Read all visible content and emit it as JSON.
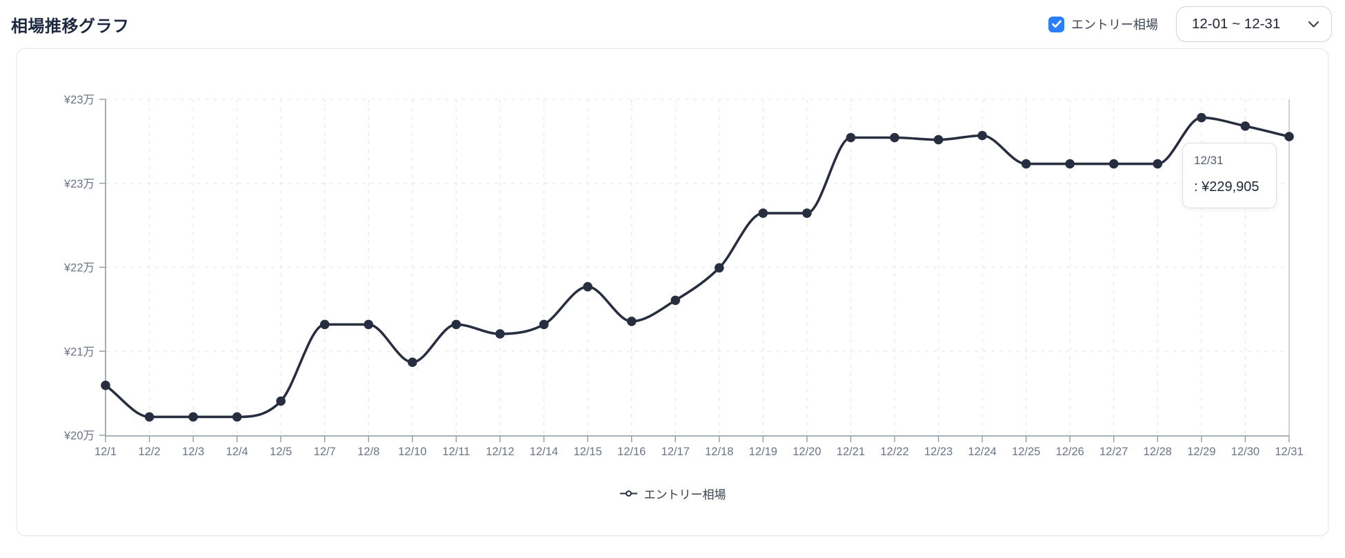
{
  "header": {
    "title": "相場推移グラフ",
    "entry_checkbox": {
      "label": "エントリー相場",
      "checked": true
    },
    "date_range_select": {
      "value": "12-01 ~ 12-31"
    }
  },
  "tooltip": {
    "date": "12/31",
    "value_text": ": ¥229,905"
  },
  "legend": {
    "label": "エントリー相場"
  },
  "colors": {
    "line": "#272e40",
    "accent_blue": "#2b7fff",
    "axis": "#8e99a9",
    "axis_label": "#6a7486",
    "gridline": "#e5e9ef",
    "card_border": "#e3e7ee"
  },
  "chart_data": {
    "type": "line",
    "title": "相場推移グラフ",
    "xlabel": "",
    "ylabel": "",
    "grid": true,
    "legend_position": "bottom",
    "categories": [
      "12/1",
      "12/2",
      "12/3",
      "12/4",
      "12/5",
      "12/7",
      "12/8",
      "12/10",
      "12/11",
      "12/12",
      "12/14",
      "12/15",
      "12/16",
      "12/17",
      "12/18",
      "12/19",
      "12/20",
      "12/21",
      "12/22",
      "12/23",
      "12/24",
      "12/25",
      "12/26",
      "12/27",
      "12/28",
      "12/29",
      "12/30",
      "12/31"
    ],
    "series": [
      {
        "name": "エントリー相場",
        "values": [
          206200,
          203200,
          203200,
          203200,
          204700,
          212000,
          212000,
          208400,
          212000,
          211100,
          212000,
          215600,
          212300,
          214300,
          217400,
          222600,
          222600,
          229800,
          229800,
          229600,
          230000,
          227300,
          227300,
          227300,
          227300,
          231700,
          230900,
          229905
        ]
      }
    ],
    "ylim": [
      201450,
      233450
    ],
    "y_ticks": [
      {
        "label": "¥20万",
        "value": 201450
      },
      {
        "label": "¥21万",
        "value": 209450
      },
      {
        "label": "¥22万",
        "value": 217450
      },
      {
        "label": "¥23万",
        "value": 225450
      },
      {
        "label": "¥23万",
        "value": 233450
      }
    ],
    "highlighted_point": {
      "category": "12/31",
      "value": 229905
    }
  }
}
